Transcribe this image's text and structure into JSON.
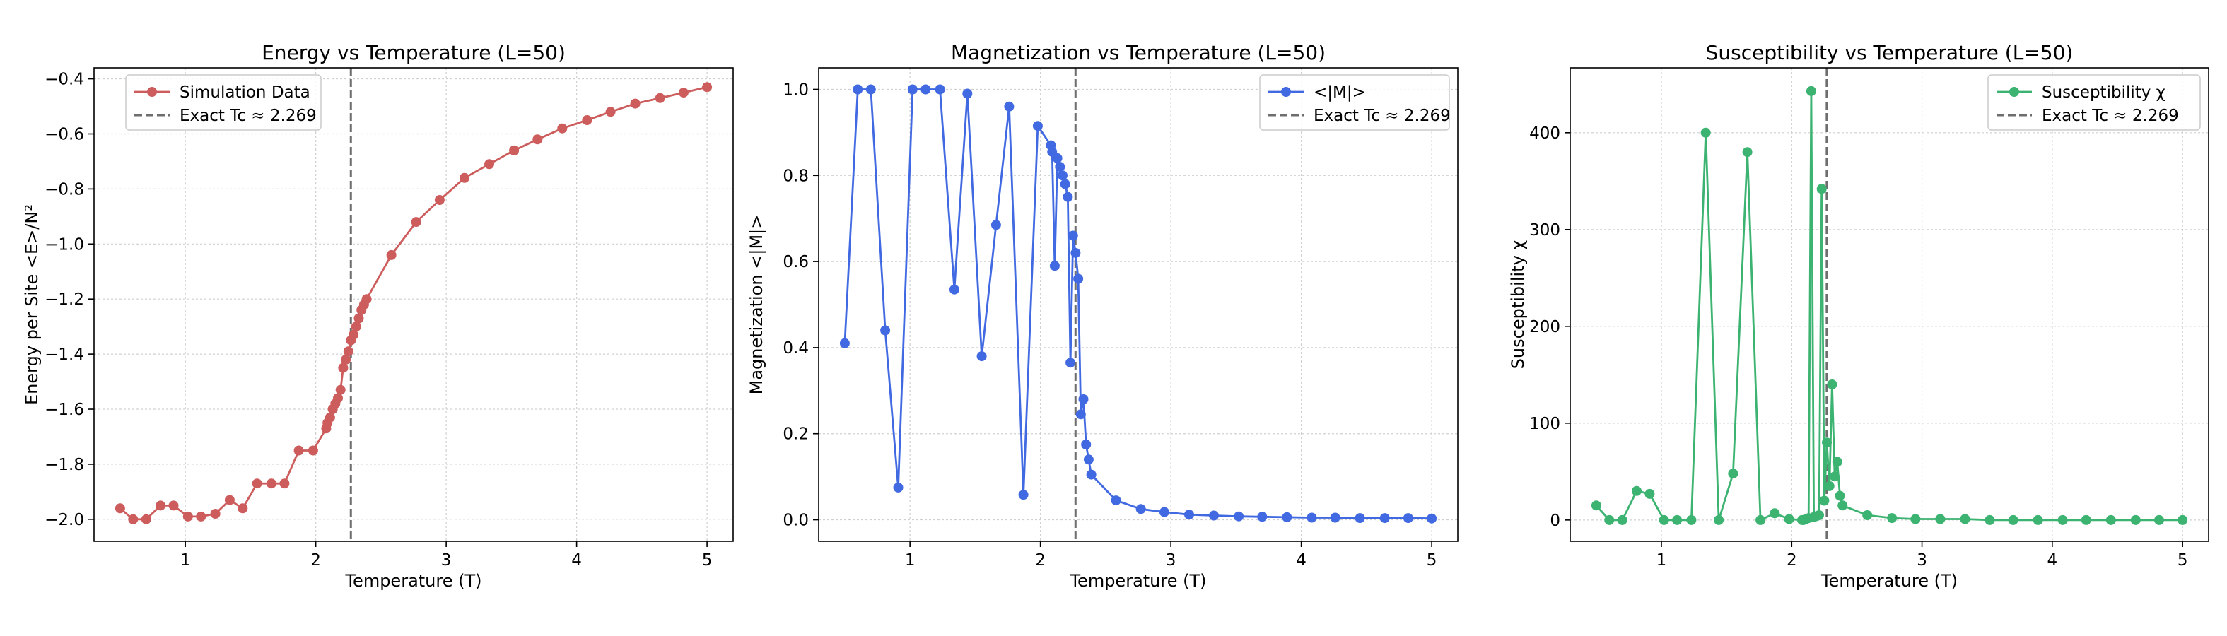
{
  "tc_line_value": 2.269,
  "chart_data": [
    {
      "id": "energy",
      "type": "line",
      "title": "Energy vs Temperature (L=50)",
      "xlabel": "Temperature (T)",
      "ylabel": "Energy per Site <E>/N²",
      "xlim": [
        0.3,
        5.2
      ],
      "ylim": [
        -2.08,
        -0.36
      ],
      "xticks": [
        1,
        2,
        3,
        4,
        5
      ],
      "yticks": [
        -2.0,
        -1.8,
        -1.6,
        -1.4,
        -1.2,
        -1.0,
        -0.8,
        -0.6,
        -0.4
      ],
      "ytick_labels": [
        "−2.0",
        "−1.8",
        "−1.6",
        "−1.4",
        "−1.2",
        "−1.0",
        "−0.8",
        "−0.6",
        "−0.4"
      ],
      "grid": true,
      "legend_position": "top-left",
      "color": "#cd5c5c",
      "legend": [
        "Simulation Data",
        "Exact Tc ≈ 2.269"
      ],
      "x": [
        0.5,
        0.6,
        0.7,
        0.81,
        0.91,
        1.02,
        1.12,
        1.23,
        1.34,
        1.44,
        1.55,
        1.66,
        1.76,
        1.87,
        1.98,
        2.08,
        2.09,
        2.11,
        2.13,
        2.15,
        2.17,
        2.19,
        2.21,
        2.23,
        2.25,
        2.27,
        2.29,
        2.31,
        2.33,
        2.35,
        2.37,
        2.39,
        2.58,
        2.77,
        2.95,
        3.14,
        3.33,
        3.52,
        3.7,
        3.89,
        4.08,
        4.26,
        4.45,
        4.64,
        4.82,
        5.0
      ],
      "values": [
        -1.96,
        -2.0,
        -2.0,
        -1.95,
        -1.95,
        -1.99,
        -1.99,
        -1.98,
        -1.93,
        -1.96,
        -1.87,
        -1.87,
        -1.87,
        -1.75,
        -1.75,
        -1.67,
        -1.65,
        -1.63,
        -1.6,
        -1.58,
        -1.56,
        -1.53,
        -1.45,
        -1.42,
        -1.39,
        -1.35,
        -1.33,
        -1.3,
        -1.27,
        -1.24,
        -1.22,
        -1.2,
        -1.04,
        -0.92,
        -0.84,
        -0.76,
        -0.71,
        -0.66,
        -0.62,
        -0.58,
        -0.55,
        -0.52,
        -0.49,
        -0.47,
        -0.45,
        -0.43
      ]
    },
    {
      "id": "magnetization",
      "type": "line",
      "title": "Magnetization vs Temperature (L=50)",
      "xlabel": "Temperature (T)",
      "ylabel": "Magnetization <|M|>",
      "xlim": [
        0.3,
        5.2
      ],
      "ylim": [
        -0.05,
        1.05
      ],
      "xticks": [
        1,
        2,
        3,
        4,
        5
      ],
      "yticks": [
        0.0,
        0.2,
        0.4,
        0.6,
        0.8,
        1.0
      ],
      "ytick_labels": [
        "0.0",
        "0.2",
        "0.4",
        "0.6",
        "0.8",
        "1.0"
      ],
      "grid": true,
      "legend_position": "top-right",
      "color": "#4169e1",
      "legend": [
        "<|M|>",
        "Exact Tc ≈ 2.269"
      ],
      "x": [
        0.5,
        0.6,
        0.7,
        0.81,
        0.91,
        1.02,
        1.12,
        1.23,
        1.34,
        1.44,
        1.55,
        1.66,
        1.76,
        1.87,
        1.98,
        2.08,
        2.09,
        2.11,
        2.13,
        2.15,
        2.17,
        2.19,
        2.21,
        2.23,
        2.25,
        2.27,
        2.29,
        2.31,
        2.33,
        2.35,
        2.37,
        2.39,
        2.58,
        2.77,
        2.95,
        3.14,
        3.33,
        3.52,
        3.7,
        3.89,
        4.08,
        4.26,
        4.45,
        4.64,
        4.82,
        5.0
      ],
      "values": [
        0.41,
        1.0,
        1.0,
        0.44,
        0.075,
        1.0,
        1.0,
        1.0,
        0.535,
        0.99,
        0.38,
        0.685,
        0.96,
        0.058,
        0.915,
        0.87,
        0.855,
        0.59,
        0.84,
        0.82,
        0.8,
        0.78,
        0.75,
        0.365,
        0.66,
        0.62,
        0.56,
        0.245,
        0.28,
        0.175,
        0.14,
        0.105,
        0.045,
        0.025,
        0.018,
        0.012,
        0.01,
        0.008,
        0.007,
        0.006,
        0.005,
        0.005,
        0.004,
        0.004,
        0.004,
        0.003
      ]
    },
    {
      "id": "susceptibility",
      "type": "line",
      "title": "Susceptibility vs Temperature (L=50)",
      "xlabel": "Temperature (T)",
      "ylabel": "Susceptibility χ",
      "xlim": [
        0.3,
        5.2
      ],
      "ylim": [
        -22,
        467
      ],
      "xticks": [
        1,
        2,
        3,
        4,
        5
      ],
      "yticks": [
        0,
        100,
        200,
        300,
        400
      ],
      "ytick_labels": [
        "0",
        "100",
        "200",
        "300",
        "400"
      ],
      "grid": true,
      "legend_position": "top-right",
      "color": "#3cb371",
      "legend": [
        "Susceptibility χ",
        "Exact Tc ≈ 2.269"
      ],
      "x": [
        0.5,
        0.6,
        0.7,
        0.81,
        0.91,
        1.02,
        1.12,
        1.23,
        1.34,
        1.44,
        1.55,
        1.66,
        1.76,
        1.87,
        1.98,
        2.08,
        2.09,
        2.11,
        2.13,
        2.15,
        2.17,
        2.19,
        2.21,
        2.23,
        2.25,
        2.27,
        2.29,
        2.31,
        2.33,
        2.35,
        2.37,
        2.39,
        2.58,
        2.77,
        2.95,
        3.14,
        3.33,
        3.52,
        3.7,
        3.89,
        4.08,
        4.26,
        4.45,
        4.64,
        4.82,
        5.0
      ],
      "values": [
        15,
        0,
        0,
        30,
        27,
        0,
        0,
        0,
        400,
        0,
        48,
        380,
        0,
        7,
        1,
        0,
        0,
        1,
        2,
        443,
        3,
        4,
        5,
        342,
        20,
        80,
        35,
        140,
        45,
        60,
        25,
        15,
        5,
        2,
        1,
        1,
        1,
        0,
        0,
        0,
        0,
        0,
        0,
        0,
        0,
        0
      ]
    }
  ]
}
